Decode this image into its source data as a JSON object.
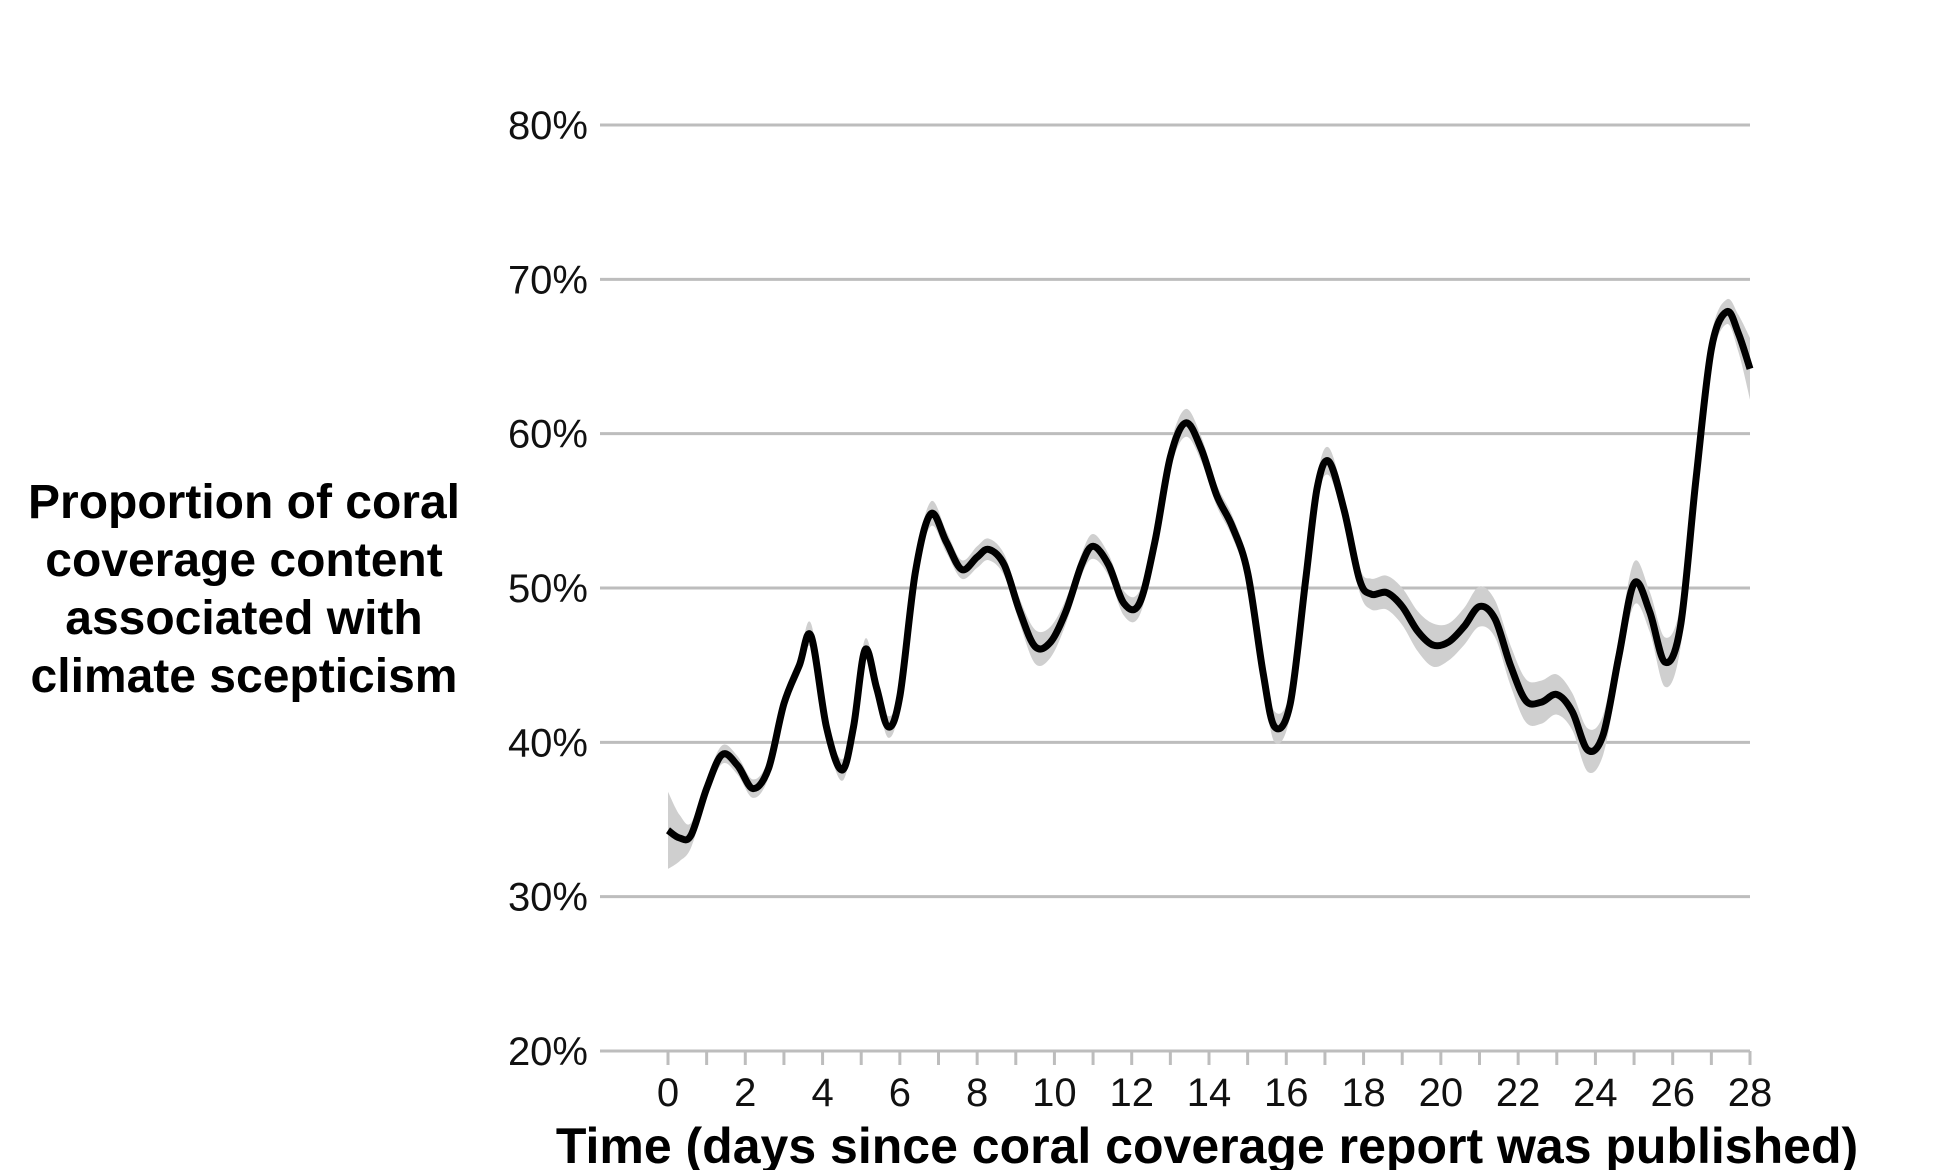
{
  "chart_data": {
    "type": "line",
    "xlabel": "Time (days since coral coverage report was published)",
    "ylabel_lines": [
      "Proportion of coral",
      "coverage content",
      "associated with",
      "climate scepticism"
    ],
    "x_ticks": [
      "0",
      "2",
      "4",
      "6",
      "8",
      "10",
      "12",
      "14",
      "16",
      "18",
      "20",
      "22",
      "24",
      "26",
      "28"
    ],
    "y_ticks": [
      "20%",
      "30%",
      "40%",
      "50%",
      "60%",
      "70%",
      "80%"
    ],
    "xlim": [
      0,
      28
    ],
    "ylim": [
      20,
      80
    ],
    "grid": "horizontal",
    "colors": {
      "line": "#000000",
      "band": "#cfcfcf",
      "grid": "#bdbdbd"
    },
    "series": [
      {
        "x": [
          0,
          0.3,
          0.6,
          1.0,
          1.4,
          1.8,
          2.2,
          2.6,
          3.0,
          3.4,
          3.7,
          4.1,
          4.5,
          4.8,
          5.1,
          5.4,
          5.7,
          6.0,
          6.4,
          6.8,
          7.2,
          7.6,
          8.0,
          8.3,
          8.7,
          9.1,
          9.5,
          9.9,
          10.3,
          10.7,
          11.0,
          11.4,
          11.8,
          12.2,
          12.6,
          13.0,
          13.4,
          13.8,
          14.2,
          14.6,
          15.0,
          15.4,
          15.7,
          16.1,
          16.5,
          16.8,
          17.1,
          17.5,
          17.9,
          18.2,
          18.6,
          19.0,
          19.4,
          19.8,
          20.2,
          20.6,
          21.0,
          21.4,
          21.8,
          22.2,
          22.6,
          23.0,
          23.4,
          23.8,
          24.2,
          24.6,
          25.0,
          25.4,
          25.8,
          26.2,
          26.6,
          27.0,
          27.4,
          27.7,
          28.0
        ],
        "y": [
          34.3,
          33.8,
          34.0,
          37.0,
          39.2,
          38.5,
          37.0,
          38.3,
          42.5,
          45.0,
          46.9,
          41.0,
          38.2,
          41.0,
          46.0,
          43.5,
          41.0,
          43.0,
          51.0,
          54.8,
          53.0,
          51.2,
          52.0,
          52.5,
          51.5,
          48.5,
          46.2,
          46.5,
          48.5,
          51.5,
          52.7,
          51.5,
          49.0,
          49.0,
          53.0,
          58.5,
          60.7,
          59.0,
          56.0,
          54.0,
          51.0,
          44.5,
          41.0,
          42.5,
          50.5,
          56.5,
          58.2,
          55.0,
          50.5,
          49.6,
          49.7,
          48.8,
          47.2,
          46.3,
          46.5,
          47.5,
          48.8,
          48.0,
          45.0,
          42.7,
          42.6,
          43.1,
          42.0,
          39.5,
          40.5,
          45.5,
          50.3,
          48.5,
          45.2,
          47.5,
          57.0,
          65.5,
          67.9,
          66.5,
          64.2
        ],
        "band_halfwidth": [
          2.5,
          1.5,
          0.8,
          0.6,
          0.6,
          0.6,
          0.6,
          0.6,
          0.6,
          0.6,
          0.8,
          0.6,
          0.7,
          0.6,
          0.7,
          0.6,
          0.7,
          0.6,
          0.6,
          0.8,
          0.7,
          0.6,
          0.7,
          0.7,
          0.7,
          0.8,
          1.1,
          1.0,
          0.8,
          0.7,
          0.8,
          0.7,
          0.8,
          0.8,
          0.7,
          0.8,
          0.9,
          0.8,
          0.7,
          0.7,
          0.7,
          0.7,
          1.0,
          0.8,
          0.8,
          0.8,
          0.9,
          0.8,
          0.8,
          1.0,
          1.1,
          1.2,
          1.3,
          1.4,
          1.2,
          1.2,
          1.3,
          1.2,
          1.3,
          1.4,
          1.4,
          1.3,
          1.2,
          1.4,
          1.3,
          1.2,
          1.4,
          1.3,
          1.6,
          1.4,
          1.0,
          0.9,
          0.8,
          1.2,
          2.0
        ]
      }
    ]
  }
}
